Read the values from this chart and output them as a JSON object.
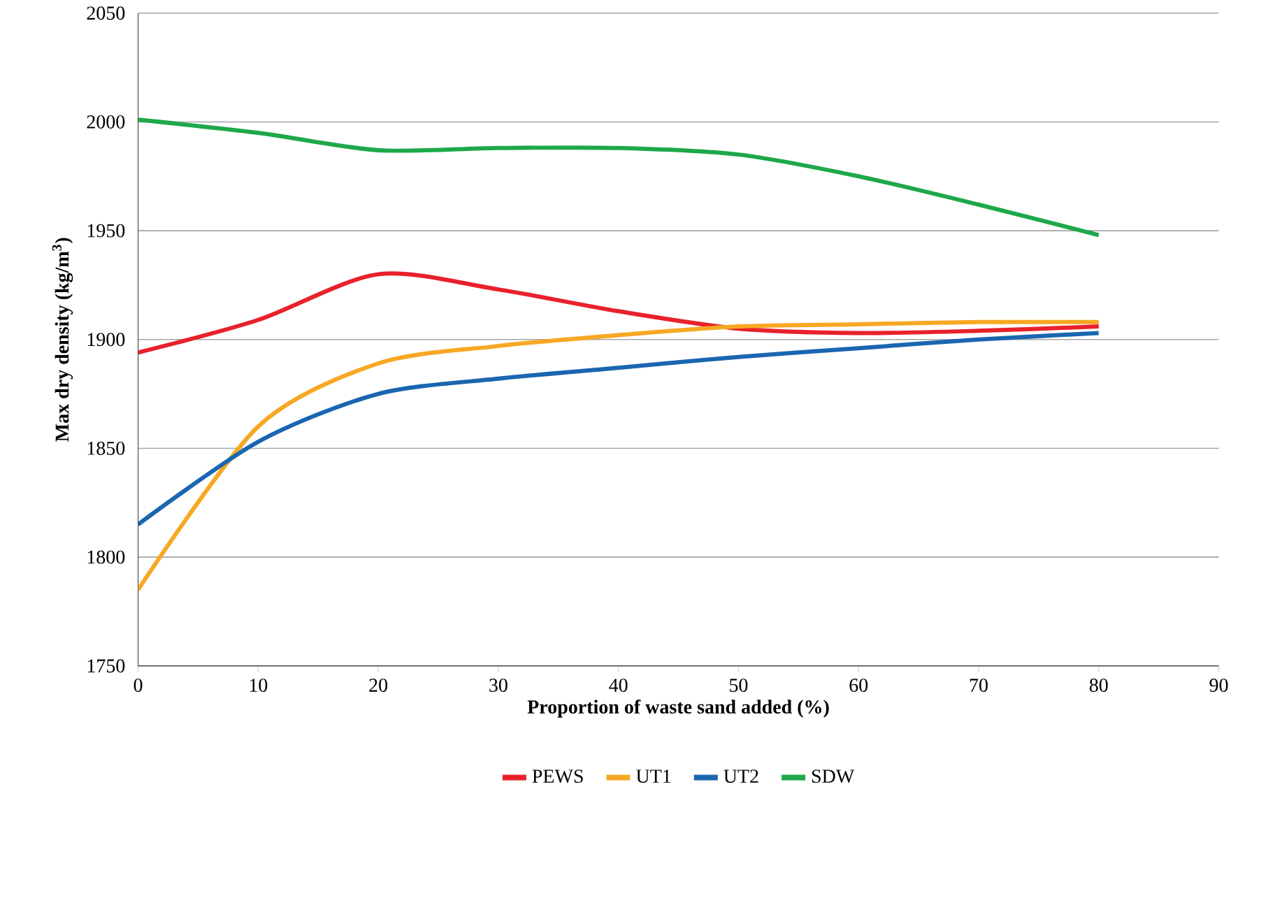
{
  "chart_data": {
    "type": "line",
    "xlabel": "Proportion of waste sand added (%)",
    "ylabel": "Max dry density (kg/m$^{3}$)",
    "x": [
      0,
      10,
      20,
      30,
      40,
      50,
      60,
      70,
      80
    ],
    "series": [
      {
        "name": "PEWS",
        "color": "#e8212b",
        "values": [
          1894,
          1909,
          1930,
          1923,
          1913,
          1905,
          1903,
          1904,
          1906
        ]
      },
      {
        "name": "UT1",
        "color": "#f7a823",
        "values": [
          1785,
          1860,
          1889,
          1897,
          1902,
          1906,
          1907,
          1908,
          1908
        ]
      },
      {
        "name": "UT2",
        "color": "#1a66b0",
        "values": [
          1815,
          1853,
          1875,
          1882,
          1887,
          1892,
          1896,
          1900,
          1903
        ]
      },
      {
        "name": "SDW",
        "color": "#1ea84a",
        "values": [
          2001,
          1995,
          1987,
          1988,
          1988,
          1985,
          1975,
          1962,
          1948
        ]
      }
    ],
    "xlim": [
      0,
      90
    ],
    "xticks": [
      0,
      10,
      20,
      30,
      40,
      50,
      60,
      70,
      80,
      90
    ],
    "ylim": [
      1750,
      2050
    ],
    "yticks": [
      1750,
      1800,
      1850,
      1900,
      1950,
      2000,
      2050
    ],
    "grid": "y",
    "legend": "bottom",
    "marker": "none",
    "line_style": "solid"
  }
}
